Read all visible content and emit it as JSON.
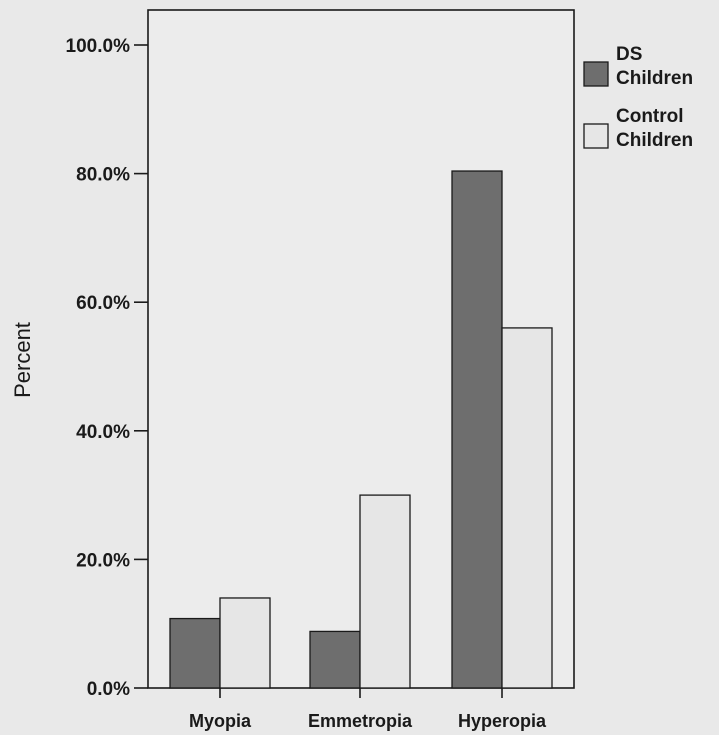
{
  "chart_data": {
    "type": "bar",
    "title": "",
    "xlabel": "",
    "ylabel": "Percent",
    "ylim": [
      0,
      100
    ],
    "yticks": [
      "0.0%",
      "20.0%",
      "40.0%",
      "60.0%",
      "80.0%",
      "100.0%"
    ],
    "categories": [
      "Myopia",
      "Emmetropia",
      "Hyperopia"
    ],
    "series": [
      {
        "name": "DS Children",
        "legend_lines": [
          "DS",
          "Children"
        ],
        "color": "#6e6e6e",
        "values": [
          10.8,
          8.8,
          80.4
        ]
      },
      {
        "name": "Control Children",
        "legend_lines": [
          "Control",
          "Children"
        ],
        "color": "#e6e6e6",
        "values": [
          14.0,
          30.0,
          56.0
        ]
      }
    ],
    "grid": false,
    "legend": "right"
  }
}
